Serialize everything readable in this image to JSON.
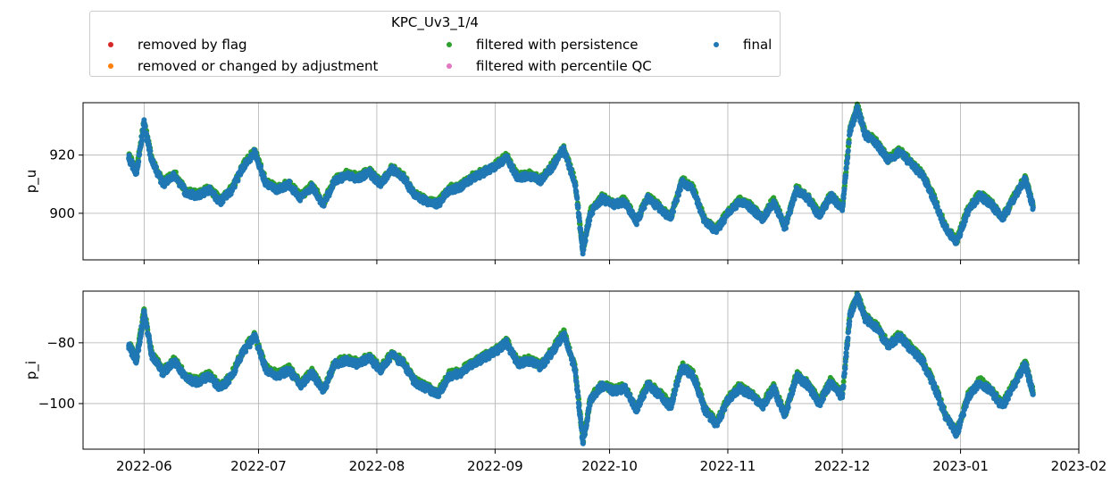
{
  "legend": {
    "title": "KPC_Uv3_1/4",
    "entries": [
      {
        "label": "removed by flag",
        "color": "#d62728"
      },
      {
        "label": "removed or changed by adjustment",
        "color": "#ff7f0e"
      },
      {
        "label": "filtered with persistence",
        "color": "#2ca02c"
      },
      {
        "label": "filtered with percentile QC",
        "color": "#e377c2"
      },
      {
        "label": "final",
        "color": "#1f77b4"
      }
    ]
  },
  "chart_data": [
    {
      "type": "scatter",
      "ylabel": "p_u",
      "xlim": [
        "2022-05-16",
        "2023-02-01"
      ],
      "ylim": [
        884,
        938
      ],
      "yticks": [
        900,
        920
      ],
      "xticks": [
        "2022-06",
        "2022-07",
        "2022-08",
        "2022-09",
        "2022-10",
        "2022-11",
        "2022-12",
        "2023-01",
        "2023-02"
      ],
      "show_xticklabels": false,
      "grid": true,
      "series": [
        {
          "name": "final",
          "color": "#1f77b4",
          "x": [
            "2022-05-28",
            "2022-05-30",
            "2022-06-01",
            "2022-06-03",
            "2022-06-06",
            "2022-06-09",
            "2022-06-12",
            "2022-06-15",
            "2022-06-18",
            "2022-06-21",
            "2022-06-24",
            "2022-06-27",
            "2022-06-30",
            "2022-07-03",
            "2022-07-06",
            "2022-07-09",
            "2022-07-12",
            "2022-07-15",
            "2022-07-18",
            "2022-07-21",
            "2022-07-24",
            "2022-07-27",
            "2022-07-30",
            "2022-08-02",
            "2022-08-05",
            "2022-08-08",
            "2022-08-11",
            "2022-08-14",
            "2022-08-17",
            "2022-08-20",
            "2022-08-23",
            "2022-08-26",
            "2022-08-29",
            "2022-09-01",
            "2022-09-04",
            "2022-09-07",
            "2022-09-10",
            "2022-09-13",
            "2022-09-16",
            "2022-09-19",
            "2022-09-22",
            "2022-09-24",
            "2022-09-26",
            "2022-09-29",
            "2022-10-02",
            "2022-10-05",
            "2022-10-08",
            "2022-10-11",
            "2022-10-14",
            "2022-10-17",
            "2022-10-20",
            "2022-10-23",
            "2022-10-26",
            "2022-10-29",
            "2022-11-01",
            "2022-11-04",
            "2022-11-07",
            "2022-11-10",
            "2022-11-13",
            "2022-11-16",
            "2022-11-19",
            "2022-11-22",
            "2022-11-25",
            "2022-11-28",
            "2022-12-01",
            "2022-12-03",
            "2022-12-05",
            "2022-12-07",
            "2022-12-10",
            "2022-12-13",
            "2022-12-16",
            "2022-12-19",
            "2022-12-22",
            "2022-12-25",
            "2022-12-28",
            "2022-12-31",
            "2023-01-03",
            "2023-01-06",
            "2023-01-09",
            "2023-01-12",
            "2023-01-15",
            "2023-01-18",
            "2023-01-20"
          ],
          "y": [
            919,
            914,
            931,
            918,
            910,
            913,
            907,
            906,
            908,
            904,
            908,
            916,
            921,
            910,
            908,
            910,
            905,
            909,
            903,
            911,
            913,
            912,
            914,
            910,
            915,
            912,
            906,
            904,
            903,
            908,
            909,
            912,
            914,
            916,
            919,
            912,
            913,
            911,
            916,
            922,
            910,
            887,
            900,
            905,
            903,
            904,
            897,
            905,
            902,
            898,
            911,
            908,
            897,
            894,
            900,
            904,
            902,
            898,
            904,
            895,
            908,
            905,
            899,
            906,
            901,
            928,
            936,
            927,
            924,
            918,
            921,
            917,
            913,
            905,
            895,
            890,
            901,
            906,
            903,
            898,
            905,
            912,
            902
          ]
        }
      ]
    },
    {
      "type": "scatter",
      "ylabel": "p_i",
      "xlim": [
        "2022-05-16",
        "2023-02-01"
      ],
      "ylim": [
        -115,
        -63
      ],
      "yticks": [
        -100,
        -80
      ],
      "xticks": [
        "2022-06",
        "2022-07",
        "2022-08",
        "2022-09",
        "2022-10",
        "2022-11",
        "2022-12",
        "2023-01",
        "2023-02"
      ],
      "show_xticklabels": true,
      "grid": true,
      "series": [
        {
          "name": "final",
          "color": "#1f77b4",
          "x": [
            "2022-05-28",
            "2022-05-30",
            "2022-06-01",
            "2022-06-03",
            "2022-06-06",
            "2022-06-09",
            "2022-06-12",
            "2022-06-15",
            "2022-06-18",
            "2022-06-21",
            "2022-06-24",
            "2022-06-27",
            "2022-06-30",
            "2022-07-03",
            "2022-07-06",
            "2022-07-09",
            "2022-07-12",
            "2022-07-15",
            "2022-07-18",
            "2022-07-21",
            "2022-07-24",
            "2022-07-27",
            "2022-07-30",
            "2022-08-02",
            "2022-08-05",
            "2022-08-08",
            "2022-08-11",
            "2022-08-14",
            "2022-08-17",
            "2022-08-20",
            "2022-08-23",
            "2022-08-26",
            "2022-08-29",
            "2022-09-01",
            "2022-09-04",
            "2022-09-07",
            "2022-09-10",
            "2022-09-13",
            "2022-09-16",
            "2022-09-19",
            "2022-09-22",
            "2022-09-24",
            "2022-09-26",
            "2022-09-29",
            "2022-10-02",
            "2022-10-05",
            "2022-10-08",
            "2022-10-11",
            "2022-10-14",
            "2022-10-17",
            "2022-10-20",
            "2022-10-23",
            "2022-10-26",
            "2022-10-29",
            "2022-11-01",
            "2022-11-04",
            "2022-11-07",
            "2022-11-10",
            "2022-11-13",
            "2022-11-16",
            "2022-11-19",
            "2022-11-22",
            "2022-11-25",
            "2022-11-28",
            "2022-12-01",
            "2022-12-03",
            "2022-12-05",
            "2022-12-07",
            "2022-12-10",
            "2022-12-13",
            "2022-12-16",
            "2022-12-19",
            "2022-12-22",
            "2022-12-25",
            "2022-12-28",
            "2022-12-31",
            "2023-01-03",
            "2023-01-06",
            "2023-01-09",
            "2023-01-12",
            "2023-01-15",
            "2023-01-18",
            "2023-01-20"
          ],
          "y": [
            -81,
            -86,
            -70,
            -84,
            -90,
            -86,
            -92,
            -93,
            -91,
            -95,
            -91,
            -83,
            -78,
            -89,
            -91,
            -89,
            -94,
            -90,
            -96,
            -87,
            -86,
            -87,
            -85,
            -89,
            -84,
            -87,
            -93,
            -95,
            -97,
            -91,
            -90,
            -87,
            -85,
            -83,
            -80,
            -87,
            -86,
            -88,
            -83,
            -77,
            -89,
            -113,
            -99,
            -94,
            -96,
            -95,
            -102,
            -94,
            -97,
            -101,
            -88,
            -91,
            -102,
            -107,
            -99,
            -95,
            -97,
            -101,
            -95,
            -104,
            -91,
            -94,
            -100,
            -93,
            -98,
            -71,
            -65,
            -72,
            -75,
            -81,
            -78,
            -82,
            -86,
            -94,
            -104,
            -110,
            -98,
            -93,
            -96,
            -101,
            -94,
            -87,
            -97
          ]
        }
      ]
    }
  ]
}
